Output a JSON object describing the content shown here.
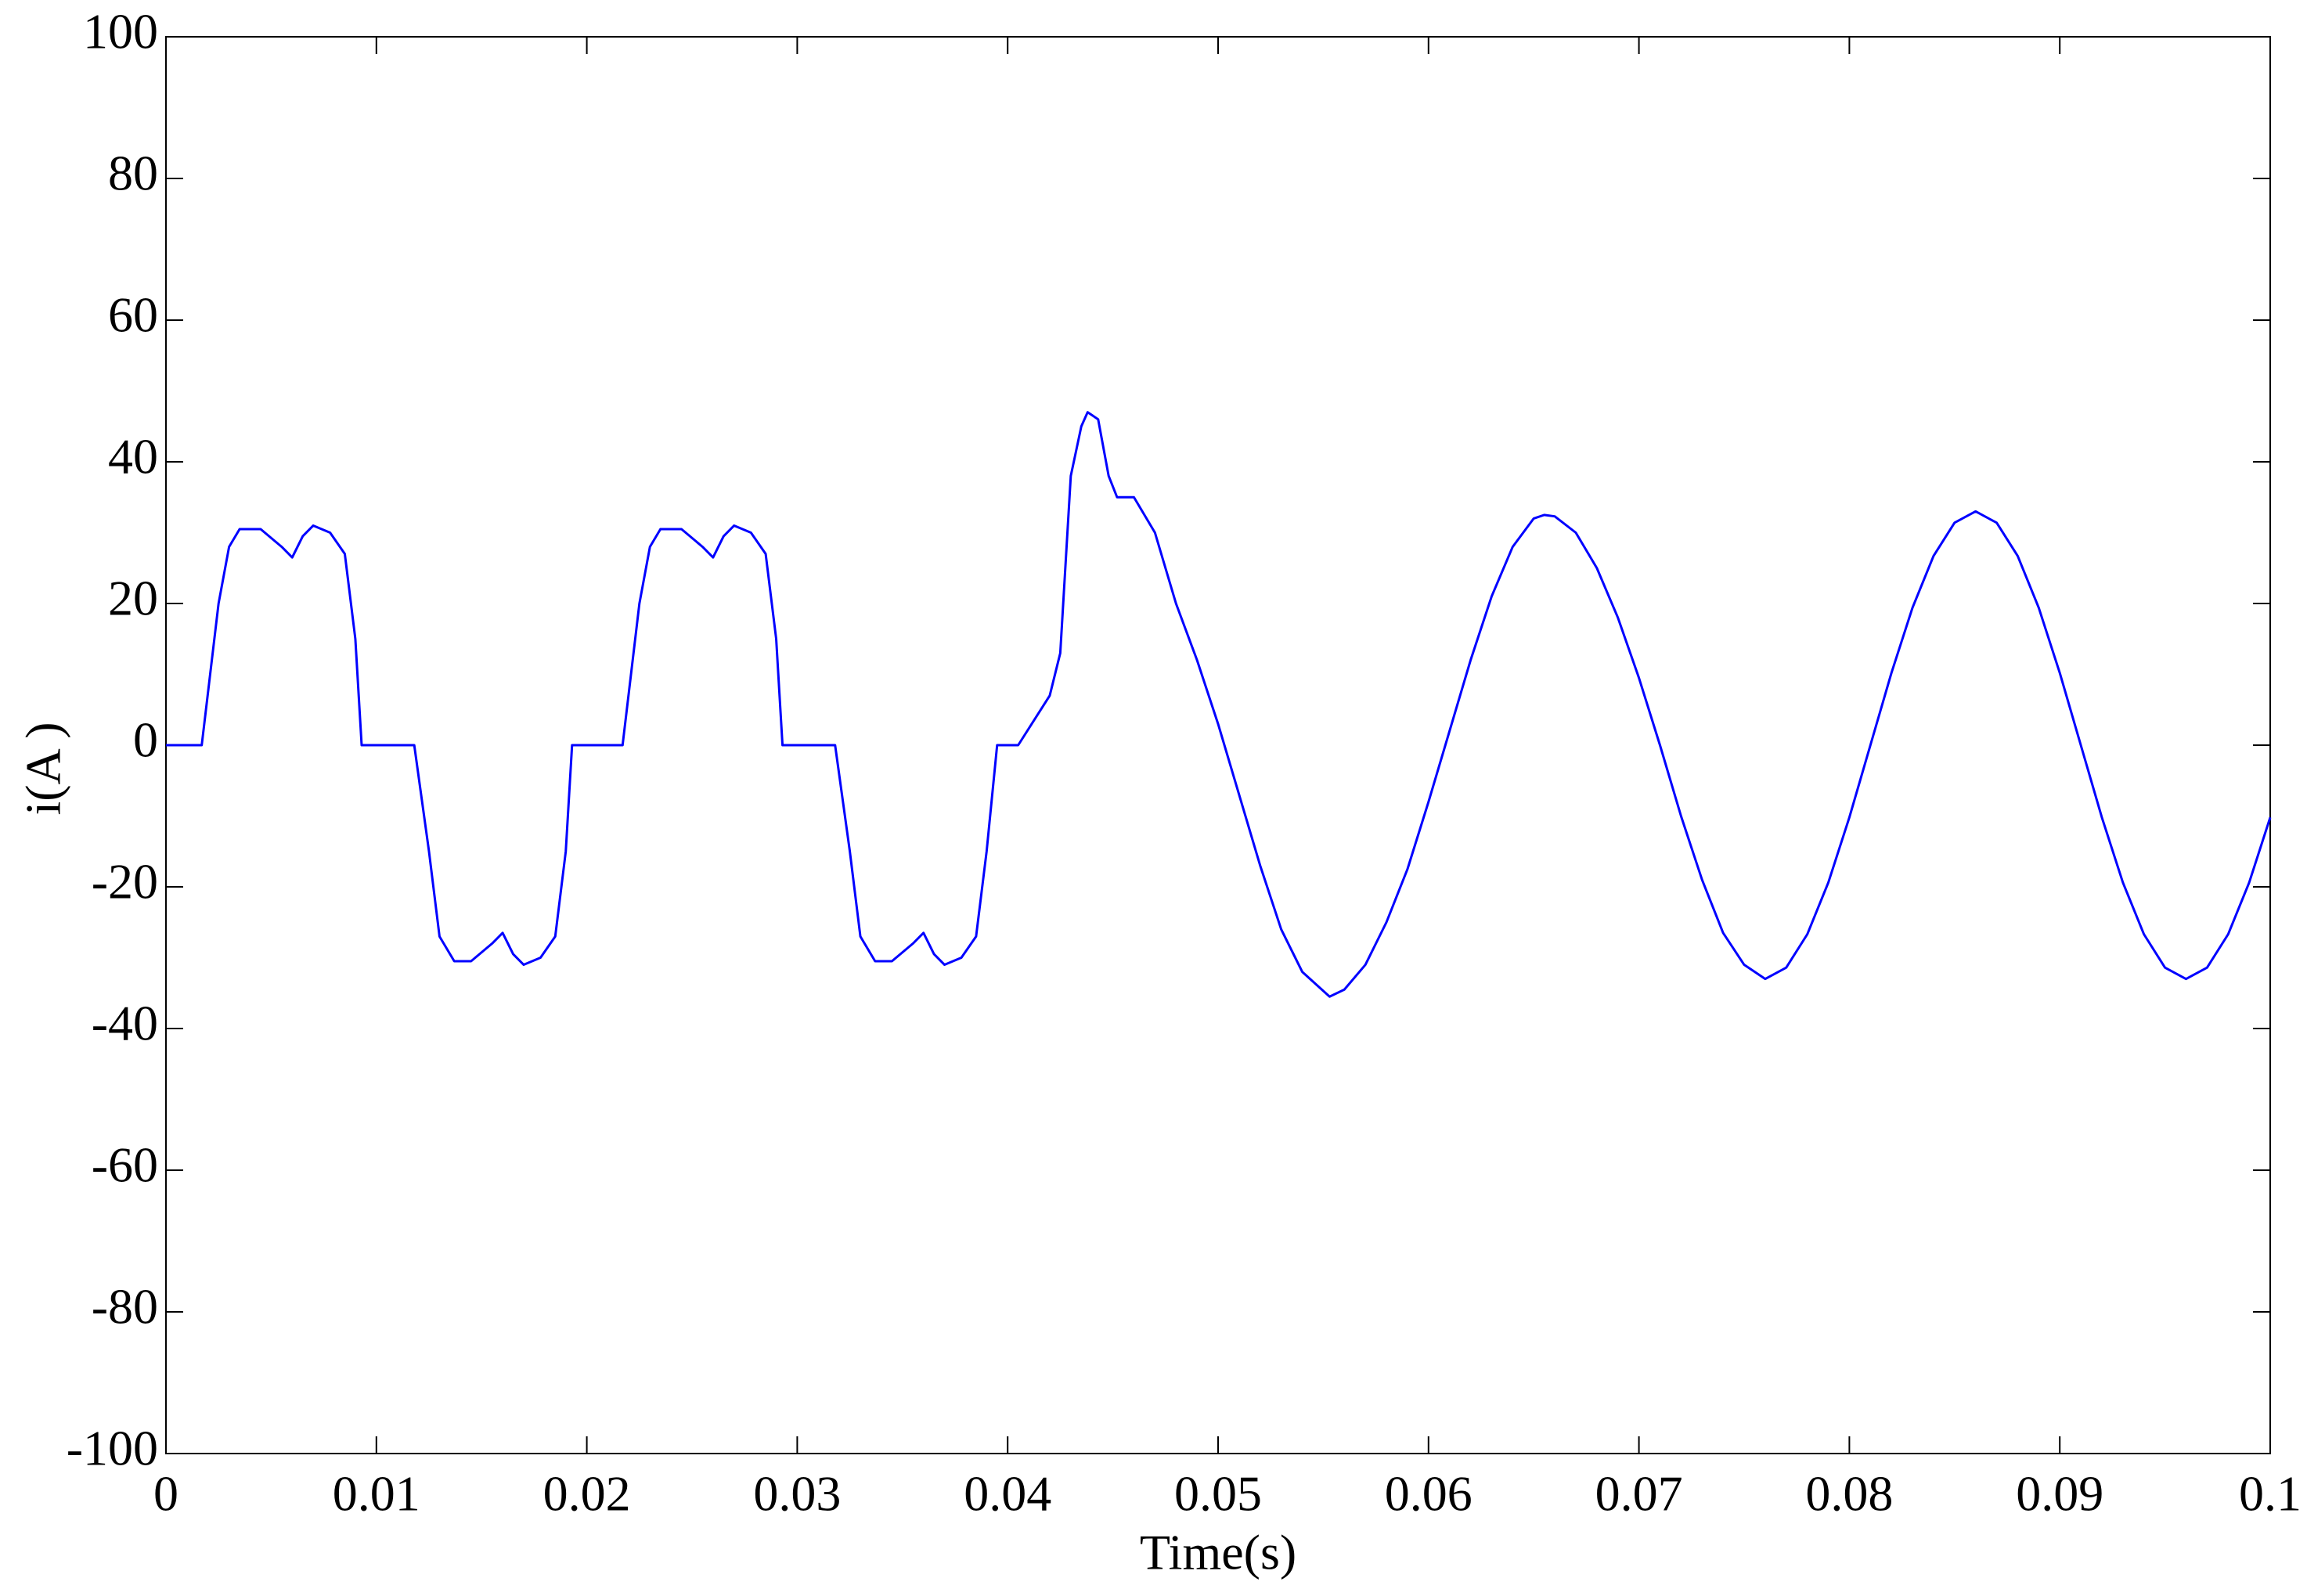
{
  "chart_data": {
    "type": "line",
    "xlabel": "Time(s)",
    "ylabel": "i(A )",
    "x": [
      0,
      0.0017,
      0.0025,
      0.003,
      0.0035,
      0.0045,
      0.0055,
      0.006,
      0.0065,
      0.007,
      0.0078,
      0.0085,
      0.009,
      0.0093,
      0.0118,
      0.0125,
      0.013,
      0.0137,
      0.0145,
      0.0155,
      0.016,
      0.0165,
      0.017,
      0.0178,
      0.0185,
      0.019,
      0.0193,
      0.0217,
      0.0225,
      0.023,
      0.0235,
      0.0245,
      0.0255,
      0.026,
      0.0265,
      0.027,
      0.0278,
      0.0285,
      0.029,
      0.0293,
      0.0318,
      0.0325,
      0.033,
      0.0337,
      0.0345,
      0.0355,
      0.036,
      0.0365,
      0.037,
      0.0378,
      0.0385,
      0.039,
      0.0395,
      0.0405,
      0.042,
      0.0425,
      0.043,
      0.0435,
      0.0438,
      0.0443,
      0.0448,
      0.0452,
      0.046,
      0.047,
      0.048,
      0.049,
      0.05,
      0.051,
      0.052,
      0.053,
      0.054,
      0.0553,
      0.056,
      0.057,
      0.058,
      0.059,
      0.06,
      0.061,
      0.062,
      0.063,
      0.064,
      0.065,
      0.0655,
      0.066,
      0.067,
      0.068,
      0.069,
      0.07,
      0.071,
      0.072,
      0.073,
      0.074,
      0.075,
      0.076,
      0.077,
      0.078,
      0.079,
      0.08,
      0.081,
      0.082,
      0.083,
      0.084,
      0.085,
      0.086,
      0.087,
      0.088,
      0.089,
      0.09,
      0.091,
      0.092,
      0.093,
      0.094,
      0.095,
      0.096,
      0.097,
      0.098,
      0.099,
      0.1
    ],
    "series": [
      {
        "color": "#0000ff",
        "values": [
          0,
          0,
          20,
          28,
          30.5,
          30.5,
          28,
          26.5,
          29.5,
          31,
          30,
          27,
          15,
          0,
          0,
          -15,
          -27,
          -30.5,
          -30.5,
          -28,
          -26.5,
          -29.5,
          -31,
          -30,
          -27,
          -15,
          0,
          0,
          20,
          28,
          30.5,
          30.5,
          28,
          26.5,
          29.5,
          31,
          30,
          27,
          15,
          0,
          0,
          -15,
          -27,
          -30.5,
          -30.5,
          -28,
          -26.5,
          -29.5,
          -31,
          -30,
          -27,
          -15,
          0,
          0,
          7,
          13,
          38,
          45,
          47,
          46,
          38,
          35,
          35,
          30,
          20,
          12,
          3,
          -7,
          -17,
          -26,
          -32,
          -35.5,
          -34.5,
          -31,
          -25,
          -17.5,
          -8,
          2,
          12,
          21,
          28,
          32,
          32.5,
          32.3,
          30,
          25,
          18,
          9.5,
          0,
          -10,
          -19,
          -26.5,
          -31,
          -33,
          -31.4,
          -26.7,
          -19.4,
          -10.2,
          0,
          10.2,
          19.4,
          26.7,
          31.4,
          33,
          31.4,
          26.7,
          19.4,
          10.2,
          0,
          -10.2,
          -19.4,
          -26.7,
          -31.4,
          -33,
          -31.4,
          -26.7,
          -19.4,
          -10.2
        ]
      }
    ],
    "xlim": [
      0,
      0.1
    ],
    "xticks": [
      0,
      0.01,
      0.02,
      0.03,
      0.04,
      0.05,
      0.06,
      0.07,
      0.08,
      0.09,
      0.1
    ],
    "ylim": [
      -100,
      100
    ],
    "yticks": [
      -100,
      -80,
      -60,
      -40,
      -20,
      0,
      20,
      40,
      60,
      80,
      100
    ],
    "grid": false
  }
}
